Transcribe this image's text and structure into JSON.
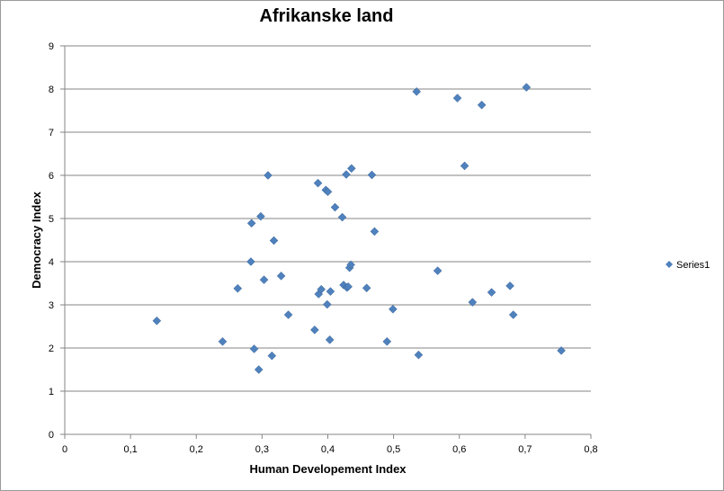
{
  "chart_data": {
    "type": "scatter",
    "title": "Afrikanske land",
    "xlabel": "Human Developement Index",
    "ylabel": "Democracy Index",
    "xlim": [
      0,
      0.8
    ],
    "ylim": [
      0,
      9
    ],
    "x_ticks": [
      "0",
      "0,1",
      "0,2",
      "0,3",
      "0,4",
      "0,5",
      "0,6",
      "0,7",
      "0,8"
    ],
    "y_ticks": [
      "0",
      "1",
      "2",
      "3",
      "4",
      "5",
      "6",
      "7",
      "8",
      "9"
    ],
    "grid": "horizontal",
    "legend_position": "right",
    "marker": "diamond",
    "series_color": "#4F81BD",
    "series": [
      {
        "name": "Series1",
        "points": [
          [
            0.14,
            2.63
          ],
          [
            0.24,
            2.15
          ],
          [
            0.263,
            3.38
          ],
          [
            0.283,
            4.0
          ],
          [
            0.284,
            4.89
          ],
          [
            0.288,
            1.98
          ],
          [
            0.295,
            1.5
          ],
          [
            0.298,
            5.05
          ],
          [
            0.303,
            3.58
          ],
          [
            0.309,
            6.0
          ],
          [
            0.315,
            1.82
          ],
          [
            0.318,
            4.49
          ],
          [
            0.329,
            3.67
          ],
          [
            0.34,
            2.77
          ],
          [
            0.38,
            2.42
          ],
          [
            0.385,
            5.82
          ],
          [
            0.386,
            3.25
          ],
          [
            0.39,
            3.36
          ],
          [
            0.397,
            5.66
          ],
          [
            0.399,
            3.01
          ],
          [
            0.4,
            5.62
          ],
          [
            0.403,
            2.19
          ],
          [
            0.404,
            3.31
          ],
          [
            0.411,
            5.26
          ],
          [
            0.422,
            5.03
          ],
          [
            0.424,
            3.46
          ],
          [
            0.428,
            6.02
          ],
          [
            0.429,
            3.4
          ],
          [
            0.431,
            3.42
          ],
          [
            0.433,
            3.86
          ],
          [
            0.435,
            3.93
          ],
          [
            0.436,
            6.16
          ],
          [
            0.459,
            3.39
          ],
          [
            0.467,
            6.01
          ],
          [
            0.471,
            4.7
          ],
          [
            0.49,
            2.15
          ],
          [
            0.499,
            2.9
          ],
          [
            0.535,
            7.94
          ],
          [
            0.538,
            1.84
          ],
          [
            0.567,
            3.79
          ],
          [
            0.597,
            7.79
          ],
          [
            0.608,
            6.22
          ],
          [
            0.62,
            3.06
          ],
          [
            0.634,
            7.63
          ],
          [
            0.649,
            3.29
          ],
          [
            0.677,
            3.44
          ],
          [
            0.682,
            2.77
          ],
          [
            0.702,
            8.04
          ],
          [
            0.755,
            1.94
          ]
        ]
      }
    ]
  }
}
